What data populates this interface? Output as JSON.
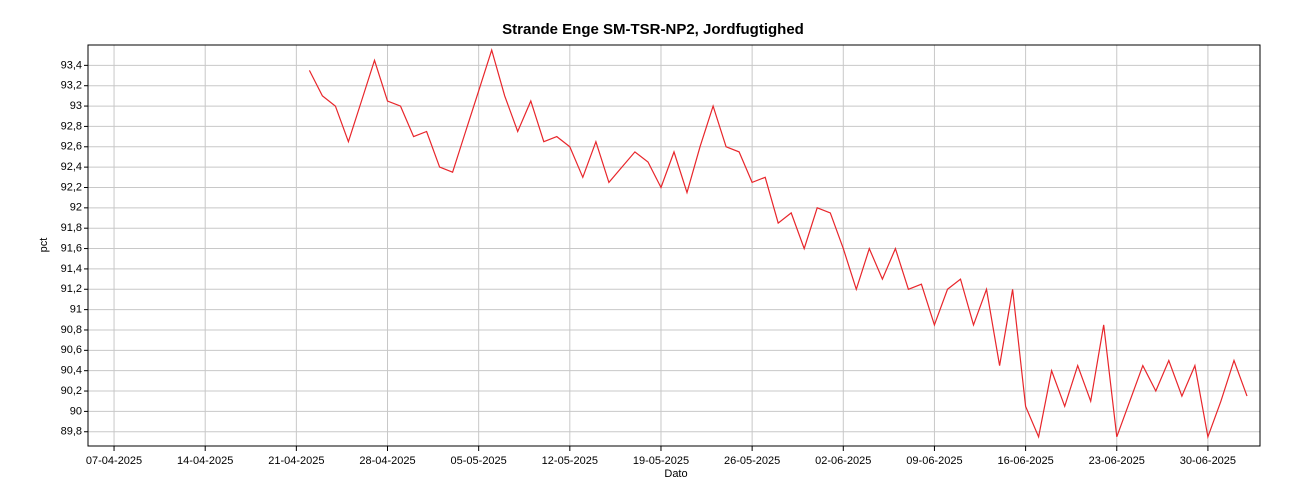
{
  "chart_data": {
    "type": "line",
    "title": "Strande Enge SM-TSR-NP2, Jordfugtighed",
    "x_label": "Dato",
    "y_label": "pct",
    "xlim": [
      "05-04-2025",
      "04-07-2025"
    ],
    "xticks": [
      "07-04-2025",
      "14-04-2025",
      "21-04-2025",
      "28-04-2025",
      "05-05-2025",
      "12-05-2025",
      "19-05-2025",
      "26-05-2025",
      "02-06-2025",
      "09-06-2025",
      "16-06-2025",
      "23-06-2025",
      "30-06-2025"
    ],
    "ylim": [
      89.66,
      93.6
    ],
    "yticks": [
      {
        "value": 89.8,
        "label": "89,8"
      },
      90,
      {
        "value": 90.2,
        "label": "90,2"
      },
      {
        "value": 90.4,
        "label": "90,4"
      },
      {
        "value": 90.6,
        "label": "90,6"
      },
      {
        "value": 90.8,
        "label": "90,8"
      },
      91,
      {
        "value": 91.2,
        "label": "91,2"
      },
      {
        "value": 91.4,
        "label": "91,4"
      },
      {
        "value": 91.6,
        "label": "91,6"
      },
      {
        "value": 91.8,
        "label": "91,8"
      },
      92,
      {
        "value": 92.2,
        "label": "92,2"
      },
      {
        "value": 92.4,
        "label": "92,4"
      },
      {
        "value": 92.6,
        "label": "92,6"
      },
      {
        "value": 92.8,
        "label": "92,8"
      },
      93,
      {
        "value": 93.2,
        "label": "93,2"
      },
      {
        "value": 93.4,
        "label": "93,4"
      }
    ],
    "grid": true,
    "series": [
      {
        "color": "#e8262b",
        "x": [
          "22-04-2025",
          "23-04-2025",
          "24-04-2025",
          "25-04-2025",
          "26-04-2025",
          "27-04-2025",
          "28-04-2025",
          "29-04-2025",
          "30-04-2025",
          "01-05-2025",
          "02-05-2025",
          "03-05-2025",
          "04-05-2025",
          "05-05-2025",
          "06-05-2025",
          "07-05-2025",
          "08-05-2025",
          "09-05-2025",
          "10-05-2025",
          "11-05-2025",
          "12-05-2025",
          "13-05-2025",
          "14-05-2025",
          "15-05-2025",
          "16-05-2025",
          "17-05-2025",
          "18-05-2025",
          "19-05-2025",
          "20-05-2025",
          "21-05-2025",
          "22-05-2025",
          "23-05-2025",
          "24-05-2025",
          "25-05-2025",
          "26-05-2025",
          "27-05-2025",
          "28-05-2025",
          "29-05-2025",
          "30-05-2025",
          "31-05-2025",
          "01-06-2025",
          "02-06-2025",
          "03-06-2025",
          "04-06-2025",
          "05-06-2025",
          "06-06-2025",
          "07-06-2025",
          "08-06-2025",
          "09-06-2025",
          "10-06-2025",
          "11-06-2025",
          "12-06-2025",
          "13-06-2025",
          "14-06-2025",
          "15-06-2025",
          "16-06-2025",
          "17-06-2025",
          "18-06-2025",
          "19-06-2025",
          "20-06-2025",
          "21-06-2025",
          "22-06-2025",
          "23-06-2025",
          "24-06-2025",
          "25-06-2025",
          "26-06-2025",
          "27-06-2025",
          "28-06-2025",
          "29-06-2025",
          "30-06-2025",
          "01-07-2025",
          "02-07-2025",
          "03-07-2025"
        ],
        "values": [
          93.35,
          93.1,
          93.0,
          92.65,
          93.05,
          93.45,
          93.05,
          93.0,
          92.7,
          92.75,
          92.4,
          92.35,
          92.75,
          93.15,
          93.55,
          93.1,
          92.75,
          93.05,
          92.65,
          92.7,
          92.6,
          92.3,
          92.65,
          92.25,
          92.4,
          92.55,
          92.45,
          92.2,
          92.55,
          92.15,
          92.6,
          93.0,
          92.6,
          92.55,
          92.25,
          92.3,
          91.85,
          91.95,
          91.6,
          92.0,
          91.95,
          91.6,
          91.2,
          91.6,
          91.3,
          91.6,
          91.2,
          91.25,
          90.85,
          91.2,
          91.3,
          90.85,
          91.2,
          90.45,
          91.2,
          90.05,
          89.75,
          90.4,
          90.05,
          90.45,
          90.1,
          90.85,
          89.75,
          90.1,
          90.45,
          90.2,
          90.5,
          90.15,
          90.45,
          89.75,
          90.1,
          90.5,
          90.15
        ]
      }
    ]
  }
}
